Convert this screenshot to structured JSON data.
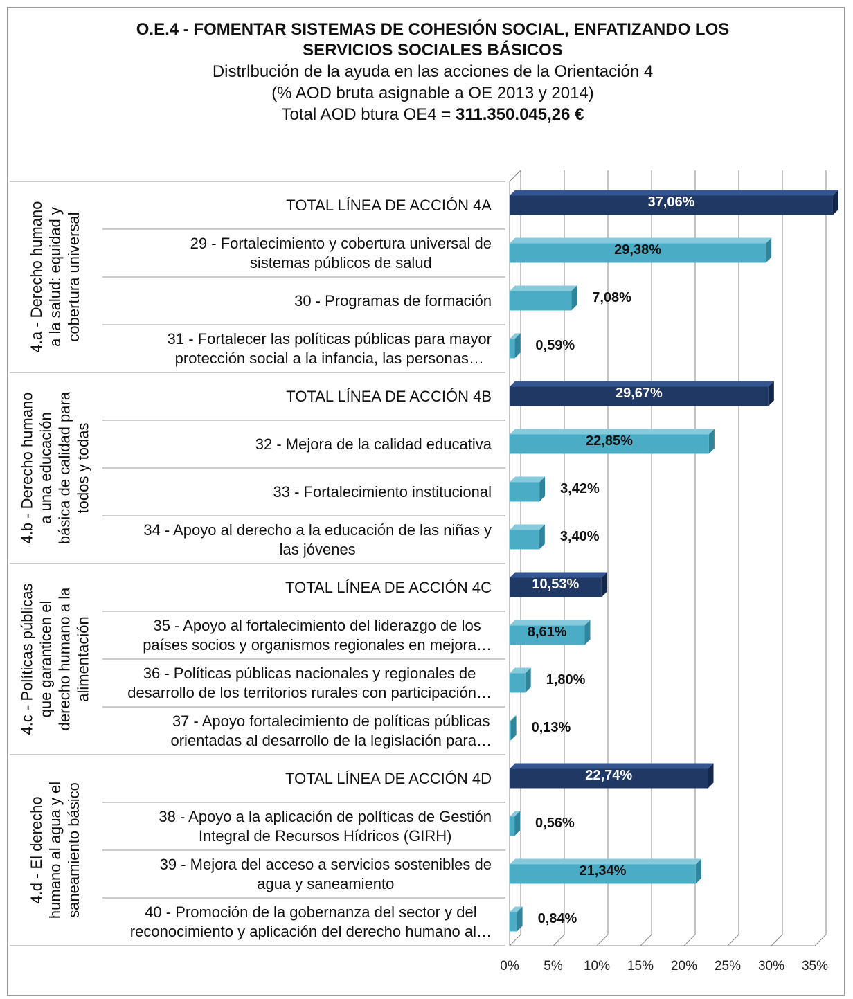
{
  "chart_data": {
    "type": "bar",
    "orientation": "horizontal",
    "title": [
      "O.E.4 - FOMENTAR SISTEMAS DE COHESIÓN SOCIAL, ENFATIZANDO LOS",
      "SERVICIOS SOCIALES BÁSICOS"
    ],
    "subtitle": [
      "Distrlbución de la ayuda en las acciones de la  Orientación 4",
      "(% AOD bruta asignable a OE 2013 y 2014)"
    ],
    "total_label": "Total  AOD btura OE4 =",
    "total_value": "311.350.045,26 €",
    "total_color": "#1f3864",
    "item_color": "#4bacc6",
    "xlim": [
      0,
      35
    ],
    "xticks": [
      {
        "value": 0,
        "label": "0%"
      },
      {
        "value": 5,
        "label": "5%"
      },
      {
        "value": 10,
        "label": "10%"
      },
      {
        "value": 15,
        "label": "15%"
      },
      {
        "value": 20,
        "label": "20%"
      },
      {
        "value": 25,
        "label": "25%"
      },
      {
        "value": 30,
        "label": "30%"
      },
      {
        "value": 35,
        "label": "35%"
      }
    ],
    "grid": true,
    "groups": [
      {
        "label": [
          "4.a - Derecho humano",
          "a la salud: equidad y",
          "cobertura universal"
        ],
        "categories": [
          "TOTAL LÍNEA DE ACCIÓN 4A",
          "29 - Fortalecimiento y cobertura universal de\nsistemas públicos de salud",
          "30 - Programas de formación",
          "31 - Fortalecer las políticas públicas para mayor\nprotección social a la infancia, las personas…"
        ],
        "values": [
          37.06,
          29.38,
          7.08,
          0.59
        ],
        "value_labels": [
          "37,06%",
          "29,38%",
          "7,08%",
          "0,59%"
        ]
      },
      {
        "label": [
          "4.b - Derecho humano",
          "a una educación",
          "básica de calidad para",
          "todos y todas"
        ],
        "categories": [
          "TOTAL LÍNEA DE ACCIÓN 4B",
          "32 - Mejora de la calidad educativa",
          "33 - Fortalecimiento institucional",
          "34 - Apoyo al derecho a la educación de las niñas y\nlas jóvenes"
        ],
        "values": [
          29.67,
          22.85,
          3.42,
          3.4
        ],
        "value_labels": [
          "29,67%",
          "22,85%",
          "3,42%",
          "3,40%"
        ]
      },
      {
        "label": [
          "4.c - Políticas públicas",
          "que garanticen el",
          "derecho humano a la",
          "alimentación"
        ],
        "categories": [
          "TOTAL LÍNEA DE ACCIÓN 4C",
          "35 - Apoyo al fortalecimiento del liderazgo de los\npaíses socios y organismos regionales en mejora…",
          "36 - Políticas públicas nacionales y regionales de\ndesarrollo de los territorios rurales con participación…",
          "37 - Apoyo fortalecimiento de políticas públicas\norientadas al desarrollo de la legislación para…"
        ],
        "values": [
          10.53,
          8.61,
          1.8,
          0.13
        ],
        "value_labels": [
          "10,53%",
          "8,61%",
          "1,80%",
          "0,13%"
        ]
      },
      {
        "label": [
          "4.d - El derecho",
          "humano al agua y el",
          "saneamiento básico"
        ],
        "categories": [
          "TOTAL LÍNEA DE ACCIÓN 4D",
          "38 - Apoyo a la aplicación de políticas de Gestión\nIntegral de Recursos Hídricos (GIRH)",
          "39 - Mejora del acceso a servicios sostenibles de\nagua y saneamiento",
          "40 - Promoción de la gobernanza del sector y del\nreconocimiento y aplicación del derecho humano al…"
        ],
        "values": [
          22.74,
          0.56,
          21.34,
          0.84
        ],
        "value_labels": [
          "22,74%",
          "0,56%",
          "21,34%",
          "0,84%"
        ]
      }
    ]
  }
}
